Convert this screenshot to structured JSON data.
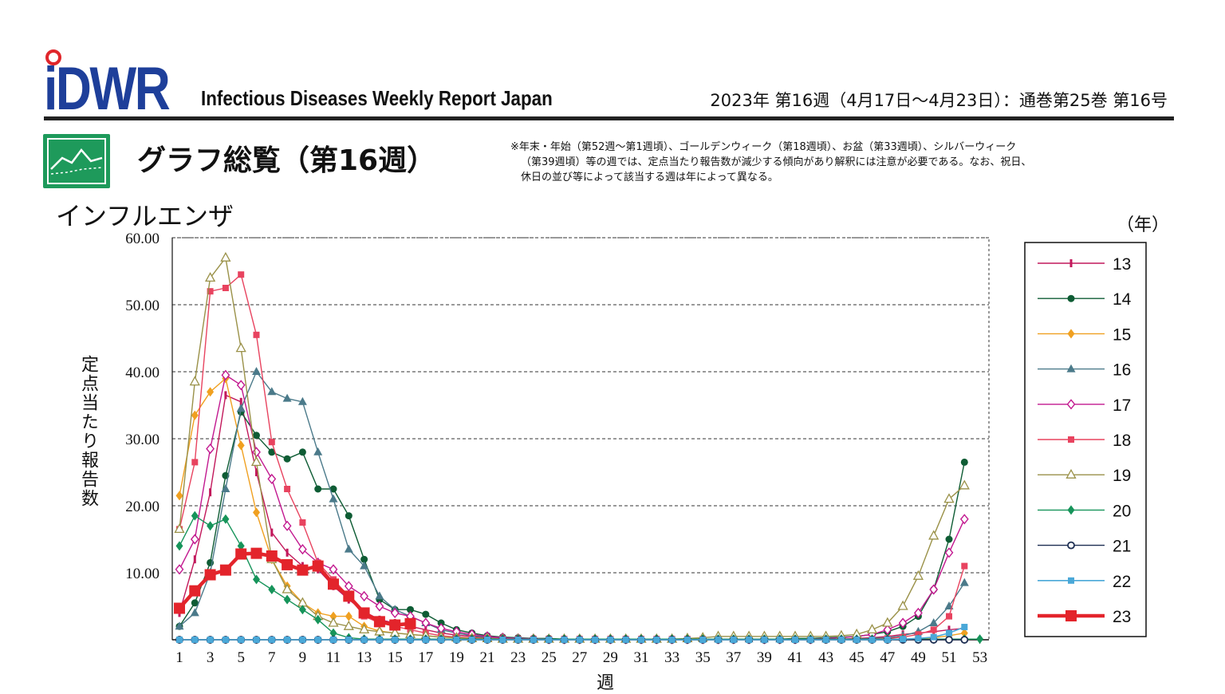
{
  "header": {
    "logo_text": "iDWR",
    "publication": "Infectious Diseases Weekly Report Japan",
    "issue": "2023年 第16週（4月17日〜4月23日）：通巻第25巻 第16号"
  },
  "section": {
    "title": "グラフ総覧（第16週）",
    "icon": "line-chart-icon",
    "note_lines": [
      "※年末・年始（第52週〜第1週頃）、ゴールデンウィーク（第18週頃）、お盆（第33週頃）、シルバーウィーク",
      "（第39週頃）等の週では、定点当たり報告数が減少する傾向があり解釈には注意が必要である。なお、祝日、",
      "休日の並び等によって該当する週は年によって異なる。"
    ]
  },
  "chart_data": {
    "type": "line",
    "title": "インフルエンザ",
    "ylabel": "定点当たり報告数",
    "xlabel": "週",
    "legend_title": "（年）",
    "legend_position": "right",
    "ylim": [
      0,
      60
    ],
    "xlim": [
      1,
      53
    ],
    "y_ticks": [
      "60.00",
      "50.00",
      "40.00",
      "30.00",
      "20.00",
      "10.00"
    ],
    "y_tick_values": [
      60,
      50,
      40,
      30,
      20,
      10
    ],
    "x_ticks": [
      1,
      3,
      5,
      7,
      9,
      11,
      13,
      15,
      17,
      19,
      21,
      23,
      25,
      27,
      29,
      31,
      33,
      35,
      37,
      39,
      41,
      43,
      45,
      47,
      49,
      51,
      53
    ],
    "grid": "horizontal dashed",
    "series": [
      {
        "name": "13",
        "color": "#c2185b",
        "marker": "bar",
        "width": 1.4,
        "values": [
          4.0,
          12.0,
          22.0,
          36.5,
          35.5,
          25.0,
          16.0,
          13.0,
          11.0,
          10.5,
          8.0,
          6.0,
          4.2,
          3.0,
          2.5,
          2.0,
          1.5,
          1.0,
          0.7,
          0.5,
          0.3,
          0.2,
          0.15,
          0.1,
          0.1,
          0.1,
          0.1,
          0.1,
          0.1,
          0.1,
          0.1,
          0.1,
          0.1,
          0.1,
          0.1,
          0.1,
          0.1,
          0.1,
          0.1,
          0.1,
          0.1,
          0.1,
          0.1,
          0.1,
          0.2,
          0.3,
          0.5,
          0.8,
          1.0,
          1.2,
          1.5,
          1.7
        ]
      },
      {
        "name": "14",
        "color": "#0e5c34",
        "marker": "dot",
        "width": 1.4,
        "values": [
          2.0,
          5.5,
          11.5,
          24.5,
          34.0,
          30.5,
          28.0,
          27.0,
          28.0,
          22.5,
          22.5,
          18.5,
          12.0,
          6.0,
          4.5,
          4.5,
          3.8,
          2.5,
          1.5,
          1.0,
          0.6,
          0.4,
          0.3,
          0.2,
          0.2,
          0.1,
          0.1,
          0.1,
          0.1,
          0.1,
          0.1,
          0.1,
          0.1,
          0.1,
          0.1,
          0.1,
          0.1,
          0.1,
          0.1,
          0.1,
          0.2,
          0.2,
          0.3,
          0.4,
          0.5,
          0.8,
          1.2,
          2.0,
          3.5,
          7.5,
          15.0,
          26.5
        ]
      },
      {
        "name": "15",
        "color": "#f0a020",
        "marker": "diamond",
        "width": 1.4,
        "values": [
          21.5,
          33.5,
          37.0,
          39.0,
          29.0,
          19.0,
          12.0,
          8.0,
          5.5,
          4.0,
          3.5,
          3.5,
          2.0,
          1.3,
          1.0,
          0.8,
          0.6,
          0.4,
          0.3,
          0.2,
          0.2,
          0.1,
          0.1,
          0.1,
          0.1,
          0.1,
          0.1,
          0.1,
          0.1,
          0.1,
          0.1,
          0.1,
          0.1,
          0.1,
          0.1,
          0.1,
          0.1,
          0.1,
          0.1,
          0.1,
          0.1,
          0.1,
          0.1,
          0.1,
          0.1,
          0.1,
          0.1,
          0.1,
          0.2,
          0.3,
          0.6,
          1.0
        ]
      },
      {
        "name": "16",
        "color": "#4b7a8a",
        "marker": "triangle",
        "width": 1.4,
        "values": [
          2.0,
          4.0,
          10.0,
          22.5,
          34.5,
          40.0,
          37.0,
          36.0,
          35.5,
          28.0,
          21.0,
          13.5,
          11.0,
          6.5,
          4.5,
          3.5,
          2.5,
          1.5,
          1.0,
          0.6,
          0.4,
          0.3,
          0.2,
          0.15,
          0.1,
          0.1,
          0.1,
          0.1,
          0.1,
          0.1,
          0.1,
          0.1,
          0.1,
          0.1,
          0.1,
          0.1,
          0.1,
          0.1,
          0.1,
          0.1,
          0.1,
          0.1,
          0.1,
          0.1,
          0.1,
          0.2,
          0.3,
          0.6,
          1.2,
          2.5,
          5.0,
          8.5
        ]
      },
      {
        "name": "17",
        "color": "#c2188f",
        "marker": "open-diamond",
        "width": 1.4,
        "values": [
          10.5,
          15.0,
          28.5,
          39.5,
          38.0,
          28.0,
          24.0,
          17.0,
          13.5,
          11.5,
          10.5,
          8.0,
          6.5,
          5.0,
          4.0,
          3.5,
          2.5,
          1.7,
          1.2,
          0.8,
          0.5,
          0.3,
          0.2,
          0.15,
          0.1,
          0.1,
          0.1,
          0.1,
          0.1,
          0.1,
          0.1,
          0.1,
          0.1,
          0.1,
          0.1,
          0.1,
          0.1,
          0.1,
          0.1,
          0.1,
          0.1,
          0.1,
          0.2,
          0.3,
          0.5,
          0.8,
          1.5,
          2.5,
          4.0,
          7.5,
          13.0,
          18.0
        ]
      },
      {
        "name": "18",
        "color": "#e8435f",
        "marker": "square",
        "width": 1.4,
        "values": [
          16.5,
          26.5,
          52.0,
          52.5,
          54.5,
          45.5,
          29.5,
          22.5,
          17.5,
          11.5,
          9.0,
          6.5,
          3.5,
          2.5,
          2.0,
          1.5,
          1.0,
          0.6,
          0.4,
          0.3,
          0.2,
          0.15,
          0.1,
          0.1,
          0.1,
          0.1,
          0.1,
          0.1,
          0.1,
          0.1,
          0.1,
          0.1,
          0.1,
          0.1,
          0.1,
          0.1,
          0.1,
          0.1,
          0.1,
          0.1,
          0.1,
          0.1,
          0.1,
          0.1,
          0.1,
          0.1,
          0.2,
          0.4,
          0.8,
          1.5,
          3.5,
          11.0
        ]
      },
      {
        "name": "19",
        "color": "#9a9148",
        "marker": "open-triangle",
        "width": 1.4,
        "values": [
          16.5,
          38.5,
          54.0,
          57.0,
          43.5,
          26.5,
          12.0,
          7.5,
          5.5,
          3.5,
          2.5,
          2.0,
          1.5,
          1.2,
          1.0,
          0.8,
          0.6,
          0.4,
          0.3,
          0.2,
          0.2,
          0.1,
          0.1,
          0.1,
          0.1,
          0.1,
          0.1,
          0.1,
          0.1,
          0.1,
          0.1,
          0.1,
          0.1,
          0.2,
          0.3,
          0.5,
          0.5,
          0.5,
          0.5,
          0.5,
          0.5,
          0.5,
          0.5,
          0.6,
          0.8,
          1.5,
          2.5,
          5.0,
          9.5,
          15.5,
          21.0,
          23.0
        ]
      },
      {
        "name": "20",
        "color": "#16945a",
        "marker": "diamond",
        "width": 1.4,
        "values": [
          14.0,
          18.5,
          17.0,
          18.0,
          14.0,
          9.0,
          7.5,
          6.0,
          4.5,
          3.0,
          1.0,
          0.3,
          0.1,
          0.1,
          0.1,
          0.1,
          0.1,
          0.1,
          0.1,
          0.1,
          0.1,
          0.1,
          0.1,
          0.1,
          0.1,
          0.1,
          0.1,
          0.1,
          0.1,
          0.1,
          0.1,
          0.1,
          0.1,
          0.1,
          0.1,
          0.1,
          0.1,
          0.1,
          0.1,
          0.1,
          0.1,
          0.1,
          0.1,
          0.1,
          0.1,
          0.1,
          0.1,
          0.1,
          0.1,
          0.1,
          0.1,
          0.1,
          0.1
        ]
      },
      {
        "name": "21",
        "color": "#1d2e52",
        "marker": "open-circle",
        "width": 1.4,
        "values": [
          0.0,
          0.0,
          0.0,
          0.0,
          0.0,
          0.0,
          0.0,
          0.0,
          0.0,
          0.0,
          0.0,
          0.0,
          0.0,
          0.0,
          0.0,
          0.0,
          0.0,
          0.0,
          0.0,
          0.0,
          0.0,
          0.0,
          0.0,
          0.0,
          0.0,
          0.0,
          0.0,
          0.0,
          0.0,
          0.0,
          0.0,
          0.0,
          0.0,
          0.0,
          0.0,
          0.0,
          0.0,
          0.0,
          0.0,
          0.0,
          0.0,
          0.0,
          0.0,
          0.0,
          0.0,
          0.0,
          0.0,
          0.0,
          0.0,
          0.0,
          0.0,
          0.0
        ]
      },
      {
        "name": "22",
        "color": "#4aa8d8",
        "marker": "square",
        "width": 1.6,
        "values": [
          0.0,
          0.0,
          0.0,
          0.0,
          0.0,
          0.0,
          0.0,
          0.0,
          0.0,
          0.0,
          0.0,
          0.0,
          0.0,
          0.0,
          0.0,
          0.0,
          0.0,
          0.0,
          0.0,
          0.0,
          0.0,
          0.0,
          0.0,
          0.0,
          0.0,
          0.0,
          0.0,
          0.0,
          0.0,
          0.0,
          0.0,
          0.0,
          0.0,
          0.0,
          0.0,
          0.0,
          0.0,
          0.0,
          0.0,
          0.0,
          0.0,
          0.0,
          0.0,
          0.0,
          0.0,
          0.0,
          0.0,
          0.1,
          0.2,
          0.4,
          1.0,
          1.9
        ]
      },
      {
        "name": "23",
        "color": "#e3242b",
        "marker": "big-square",
        "width": 4.5,
        "values": [
          4.7,
          7.3,
          9.7,
          10.4,
          12.8,
          12.9,
          12.5,
          11.2,
          10.4,
          11.0,
          8.3,
          6.5,
          4.0,
          2.7,
          2.2,
          2.4
        ]
      }
    ]
  }
}
